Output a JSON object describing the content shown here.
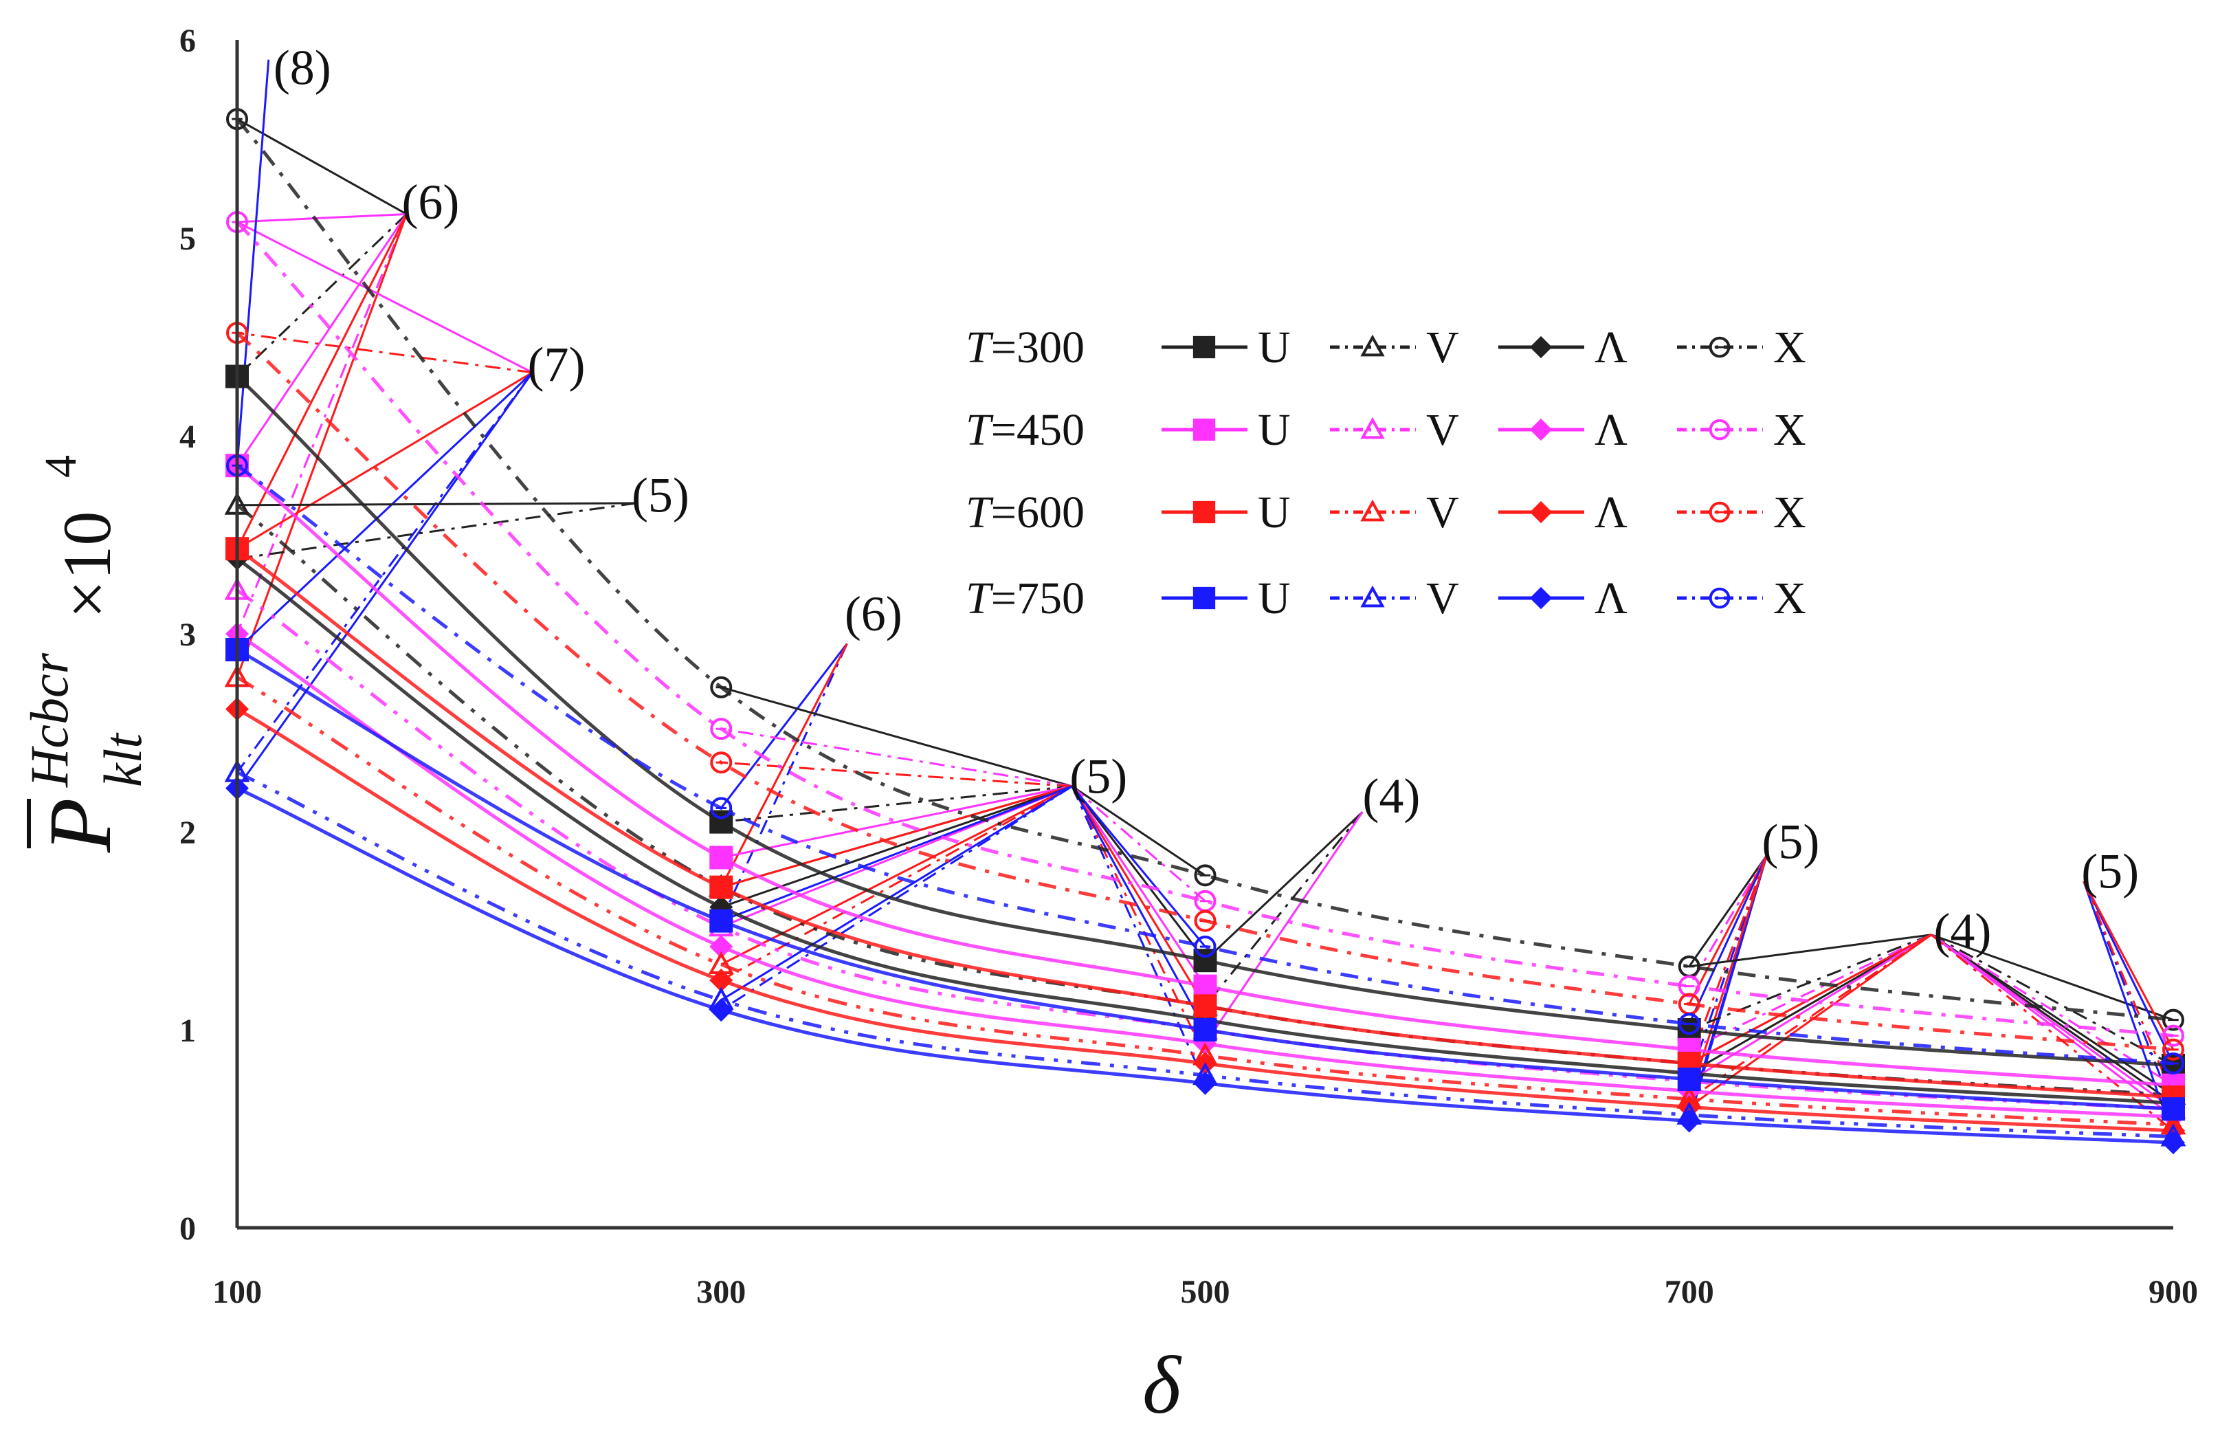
{
  "chart_data": {
    "type": "line",
    "title": "",
    "xlabel": "δ",
    "ylabel": {
      "symbol": "P",
      "superscript": "Hcbcr",
      "subscript": "klt",
      "multiplier": "×10",
      "exponent": "4"
    },
    "x": [
      100,
      300,
      500,
      700,
      900
    ],
    "xticks": [
      "100",
      "300",
      "500",
      "700",
      "900"
    ],
    "yticks": [
      "0",
      "1",
      "2",
      "3",
      "4",
      "5",
      "6"
    ],
    "xlim": [
      100,
      900
    ],
    "ylim": [
      0,
      6
    ],
    "grid": false,
    "legend_position": "top-right",
    "temperatures": [
      "T=300",
      "T=450",
      "T=600",
      "T=750"
    ],
    "temperature_prefix": "T",
    "temperature_values": [
      "=300",
      "=450",
      "=600",
      "=750"
    ],
    "temperature_colors": [
      "#222222",
      "#ff33ff",
      "#ff1a1a",
      "#1a1aff"
    ],
    "series_labels": [
      "U",
      "V",
      "Λ",
      "X"
    ],
    "series": [
      {
        "name": "U, T=300",
        "temp": 0,
        "kind": "U",
        "values": [
          4.3,
          2.05,
          1.35,
          1.0,
          0.82
        ]
      },
      {
        "name": "V, T=300",
        "temp": 0,
        "kind": "V",
        "values": [
          3.65,
          1.72,
          1.12,
          0.83,
          0.67
        ]
      },
      {
        "name": "Λ, T=300",
        "temp": 0,
        "kind": "L",
        "values": [
          3.38,
          1.62,
          1.05,
          0.78,
          0.63
        ]
      },
      {
        "name": "X, T=300",
        "temp": 0,
        "kind": "X",
        "values": [
          5.6,
          2.73,
          1.78,
          1.32,
          1.05
        ]
      },
      {
        "name": "U, T=450",
        "temp": 1,
        "kind": "U",
        "values": [
          3.85,
          1.87,
          1.22,
          0.9,
          0.72
        ]
      },
      {
        "name": "V, T=450",
        "temp": 1,
        "kind": "V",
        "values": [
          3.22,
          1.52,
          1.0,
          0.74,
          0.6
        ]
      },
      {
        "name": "Λ, T=450",
        "temp": 1,
        "kind": "L",
        "values": [
          3.0,
          1.42,
          0.93,
          0.69,
          0.56
        ]
      },
      {
        "name": "X, T=450",
        "temp": 1,
        "kind": "X",
        "values": [
          5.08,
          2.52,
          1.65,
          1.22,
          0.97
        ]
      },
      {
        "name": "U, T=600",
        "temp": 2,
        "kind": "U",
        "values": [
          3.43,
          1.72,
          1.12,
          0.83,
          0.66
        ]
      },
      {
        "name": "V, T=600",
        "temp": 2,
        "kind": "V",
        "values": [
          2.78,
          1.33,
          0.87,
          0.65,
          0.52
        ]
      },
      {
        "name": "Λ, T=600",
        "temp": 2,
        "kind": "L",
        "values": [
          2.62,
          1.25,
          0.83,
          0.61,
          0.49
        ]
      },
      {
        "name": "X, T=600",
        "temp": 2,
        "kind": "X",
        "values": [
          4.52,
          2.35,
          1.55,
          1.13,
          0.9
        ]
      },
      {
        "name": "U, T=750",
        "temp": 3,
        "kind": "U",
        "values": [
          2.92,
          1.55,
          1.0,
          0.75,
          0.6
        ]
      },
      {
        "name": "V, T=750",
        "temp": 3,
        "kind": "V",
        "values": [
          2.3,
          1.15,
          0.77,
          0.57,
          0.46
        ]
      },
      {
        "name": "Λ, T=750",
        "temp": 3,
        "kind": "L",
        "values": [
          2.22,
          1.1,
          0.73,
          0.54,
          0.43
        ]
      },
      {
        "name": "X, T=750",
        "temp": 3,
        "kind": "X",
        "values": [
          3.85,
          2.12,
          1.42,
          1.03,
          0.83
        ]
      }
    ],
    "annotations": [
      {
        "text": "(8)",
        "x": 115,
        "y": 5.86
      },
      {
        "text": "(6)",
        "x": 168,
        "y": 5.18
      },
      {
        "text": "(7)",
        "x": 220,
        "y": 4.36
      },
      {
        "text": "(5)",
        "x": 263,
        "y": 3.7
      },
      {
        "text": "(6)",
        "x": 351,
        "y": 3.1
      },
      {
        "text": "(5)",
        "x": 444,
        "y": 2.28
      },
      {
        "text": "(4)",
        "x": 565,
        "y": 2.18
      },
      {
        "text": "(5)",
        "x": 730,
        "y": 1.95
      },
      {
        "text": "(4)",
        "x": 801,
        "y": 1.5
      },
      {
        "text": "(5)",
        "x": 862,
        "y": 1.8
      }
    ],
    "callouts": [
      {
        "from": [
          170,
          5.12
        ],
        "to": [
          [
            100,
            5.6,
            0
          ],
          [
            100,
            4.3,
            0
          ],
          [
            100,
            5.08,
            1
          ],
          [
            100,
            3.85,
            1
          ],
          [
            100,
            3.0,
            1
          ],
          [
            100,
            3.43,
            2
          ],
          [
            100,
            2.78,
            2
          ]
        ]
      },
      {
        "from": [
          222,
          4.32
        ],
        "to": [
          [
            100,
            5.08,
            1
          ],
          [
            100,
            4.52,
            2
          ],
          [
            100,
            3.43,
            2
          ],
          [
            100,
            2.92,
            3
          ],
          [
            100,
            2.3,
            3
          ],
          [
            100,
            2.22,
            3
          ]
        ]
      },
      {
        "from": [
          265,
          3.66
        ],
        "to": [
          [
            100,
            3.65,
            0
          ],
          [
            100,
            3.38,
            0
          ]
        ]
      },
      {
        "from": [
          113,
          5.9
        ],
        "to": [
          [
            100,
            3.85,
            3
          ]
        ]
      },
      {
        "from": [
          352,
          2.95
        ],
        "to": [
          [
            300,
            2.12,
            3
          ],
          [
            300,
            1.55,
            3
          ],
          [
            300,
            1.72,
            2
          ]
        ]
      },
      {
        "from": [
          445,
          2.23
        ],
        "to": [
          [
            300,
            2.73,
            0
          ],
          [
            300,
            2.05,
            0
          ],
          [
            300,
            1.72,
            0
          ],
          [
            300,
            1.62,
            0
          ],
          [
            300,
            2.52,
            1
          ],
          [
            300,
            1.87,
            1
          ],
          [
            300,
            1.52,
            1
          ],
          [
            300,
            2.35,
            2
          ],
          [
            300,
            1.72,
            2
          ],
          [
            300,
            1.33,
            2
          ],
          [
            300,
            1.25,
            2
          ],
          [
            300,
            1.55,
            3
          ],
          [
            300,
            1.15,
            3
          ],
          [
            300,
            1.1,
            3
          ],
          [
            500,
            1.78,
            0
          ],
          [
            500,
            1.35,
            0
          ],
          [
            500,
            1.65,
            1
          ],
          [
            500,
            1.22,
            1
          ],
          [
            500,
            1.12,
            2
          ],
          [
            500,
            0.87,
            2
          ],
          [
            500,
            1.42,
            3
          ],
          [
            500,
            1.0,
            3
          ],
          [
            500,
            0.73,
            3
          ]
        ]
      },
      {
        "from": [
          565,
          2.1
        ],
        "to": [
          [
            500,
            1.35,
            0
          ],
          [
            500,
            1.12,
            0
          ],
          [
            500,
            0.93,
            1
          ]
        ]
      },
      {
        "from": [
          732,
          1.88
        ],
        "to": [
          [
            700,
            1.32,
            0
          ],
          [
            700,
            1.22,
            1
          ],
          [
            700,
            1.13,
            2
          ],
          [
            700,
            1.03,
            3
          ],
          [
            700,
            0.75,
            3
          ],
          [
            700,
            0.57,
            3
          ],
          [
            700,
            0.54,
            3
          ],
          [
            700,
            0.83,
            2
          ],
          [
            700,
            0.65,
            2
          ]
        ]
      },
      {
        "from": [
          800,
          1.48
        ],
        "to": [
          [
            700,
            1.32,
            0
          ],
          [
            700,
            1.0,
            0
          ],
          [
            700,
            0.83,
            0
          ],
          [
            700,
            0.78,
            0
          ],
          [
            700,
            0.9,
            1
          ],
          [
            700,
            0.74,
            1
          ],
          [
            700,
            0.83,
            2
          ],
          [
            700,
            0.65,
            2
          ],
          [
            700,
            0.61,
            2
          ],
          [
            900,
            1.05,
            0
          ],
          [
            900,
            0.82,
            0
          ],
          [
            900,
            0.67,
            0
          ],
          [
            900,
            0.63,
            0
          ],
          [
            900,
            0.72,
            1
          ],
          [
            900,
            0.6,
            1
          ],
          [
            900,
            0.56,
            1
          ],
          [
            900,
            0.49,
            2
          ]
        ]
      },
      {
        "from": [
          863,
          1.75
        ],
        "to": [
          [
            900,
            0.83,
            3
          ],
          [
            900,
            0.6,
            3
          ],
          [
            900,
            0.46,
            3
          ],
          [
            900,
            0.9,
            2
          ],
          [
            900,
            0.66,
            2
          ]
        ]
      }
    ]
  }
}
